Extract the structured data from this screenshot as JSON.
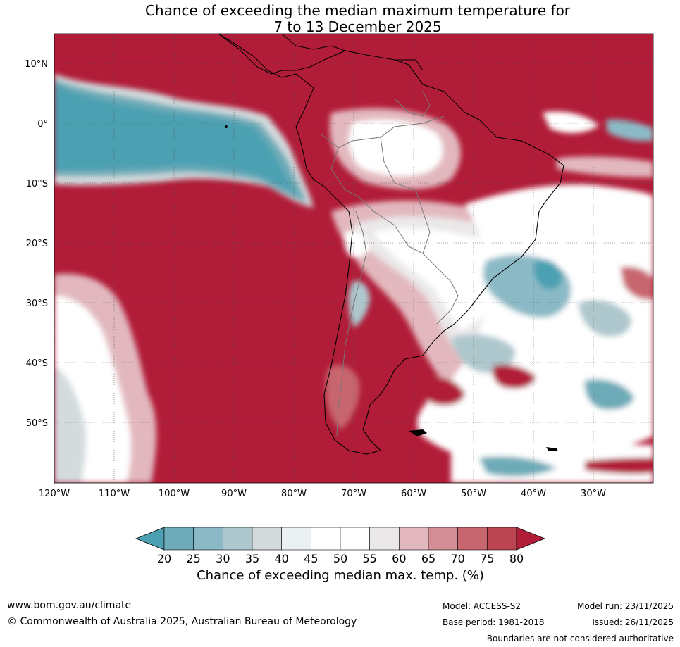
{
  "title": {
    "line1": "Chance of exceeding the median maximum temperature for",
    "line2": "7 to 13 December 2025"
  },
  "map": {
    "lat_labels": [
      "10°N",
      "0°",
      "10°S",
      "20°S",
      "30°S",
      "40°S",
      "50°S"
    ],
    "lon_labels": [
      "120°W",
      "110°W",
      "100°W",
      "90°W",
      "80°W",
      "70°W",
      "60°W",
      "50°W",
      "40°W",
      "30°W"
    ],
    "colors": {
      "c20": "#4ca0b2",
      "c25": "#6eabb8",
      "c30": "#8bbac6",
      "c35": "#adc7cd",
      "c40": "#d3dbdd",
      "c45": "#eaf0f2",
      "c50": "#ffffff",
      "c55": "#ffffff",
      "c60": "#ebe8e9",
      "c65": "#e2b8be",
      "c70": "#d38d96",
      "c75": "#c8666f",
      "c80": "#bb4452",
      "c85": "#b11c38"
    }
  },
  "colorbar": {
    "ticks": [
      "20",
      "25",
      "30",
      "35",
      "40",
      "45",
      "50",
      "55",
      "60",
      "65",
      "70",
      "75",
      "80"
    ],
    "label": "Chance of exceeding median max. temp. (%)",
    "colors": [
      "#6eabb8",
      "#8bbac6",
      "#adc7cd",
      "#d3dbdd",
      "#eaf0f2",
      "#ffffff",
      "#ffffff",
      "#ebe8e9",
      "#e2b8be",
      "#d38d96",
      "#c8666f",
      "#bb4452"
    ],
    "under_color": "#4ca0b2",
    "over_color": "#b11c38"
  },
  "footer": {
    "website": "www.bom.gov.au/climate",
    "copyright": "© Commonwealth of Australia 2025, Australian Bureau of Meteorology",
    "model": "Model: ACCESS-S2",
    "base_period": "Base period: 1981-2018",
    "model_run": "Model run: 23/11/2025",
    "issued": "Issued: 26/11/2025",
    "disclaimer": "Boundaries are not considered authoritative"
  }
}
